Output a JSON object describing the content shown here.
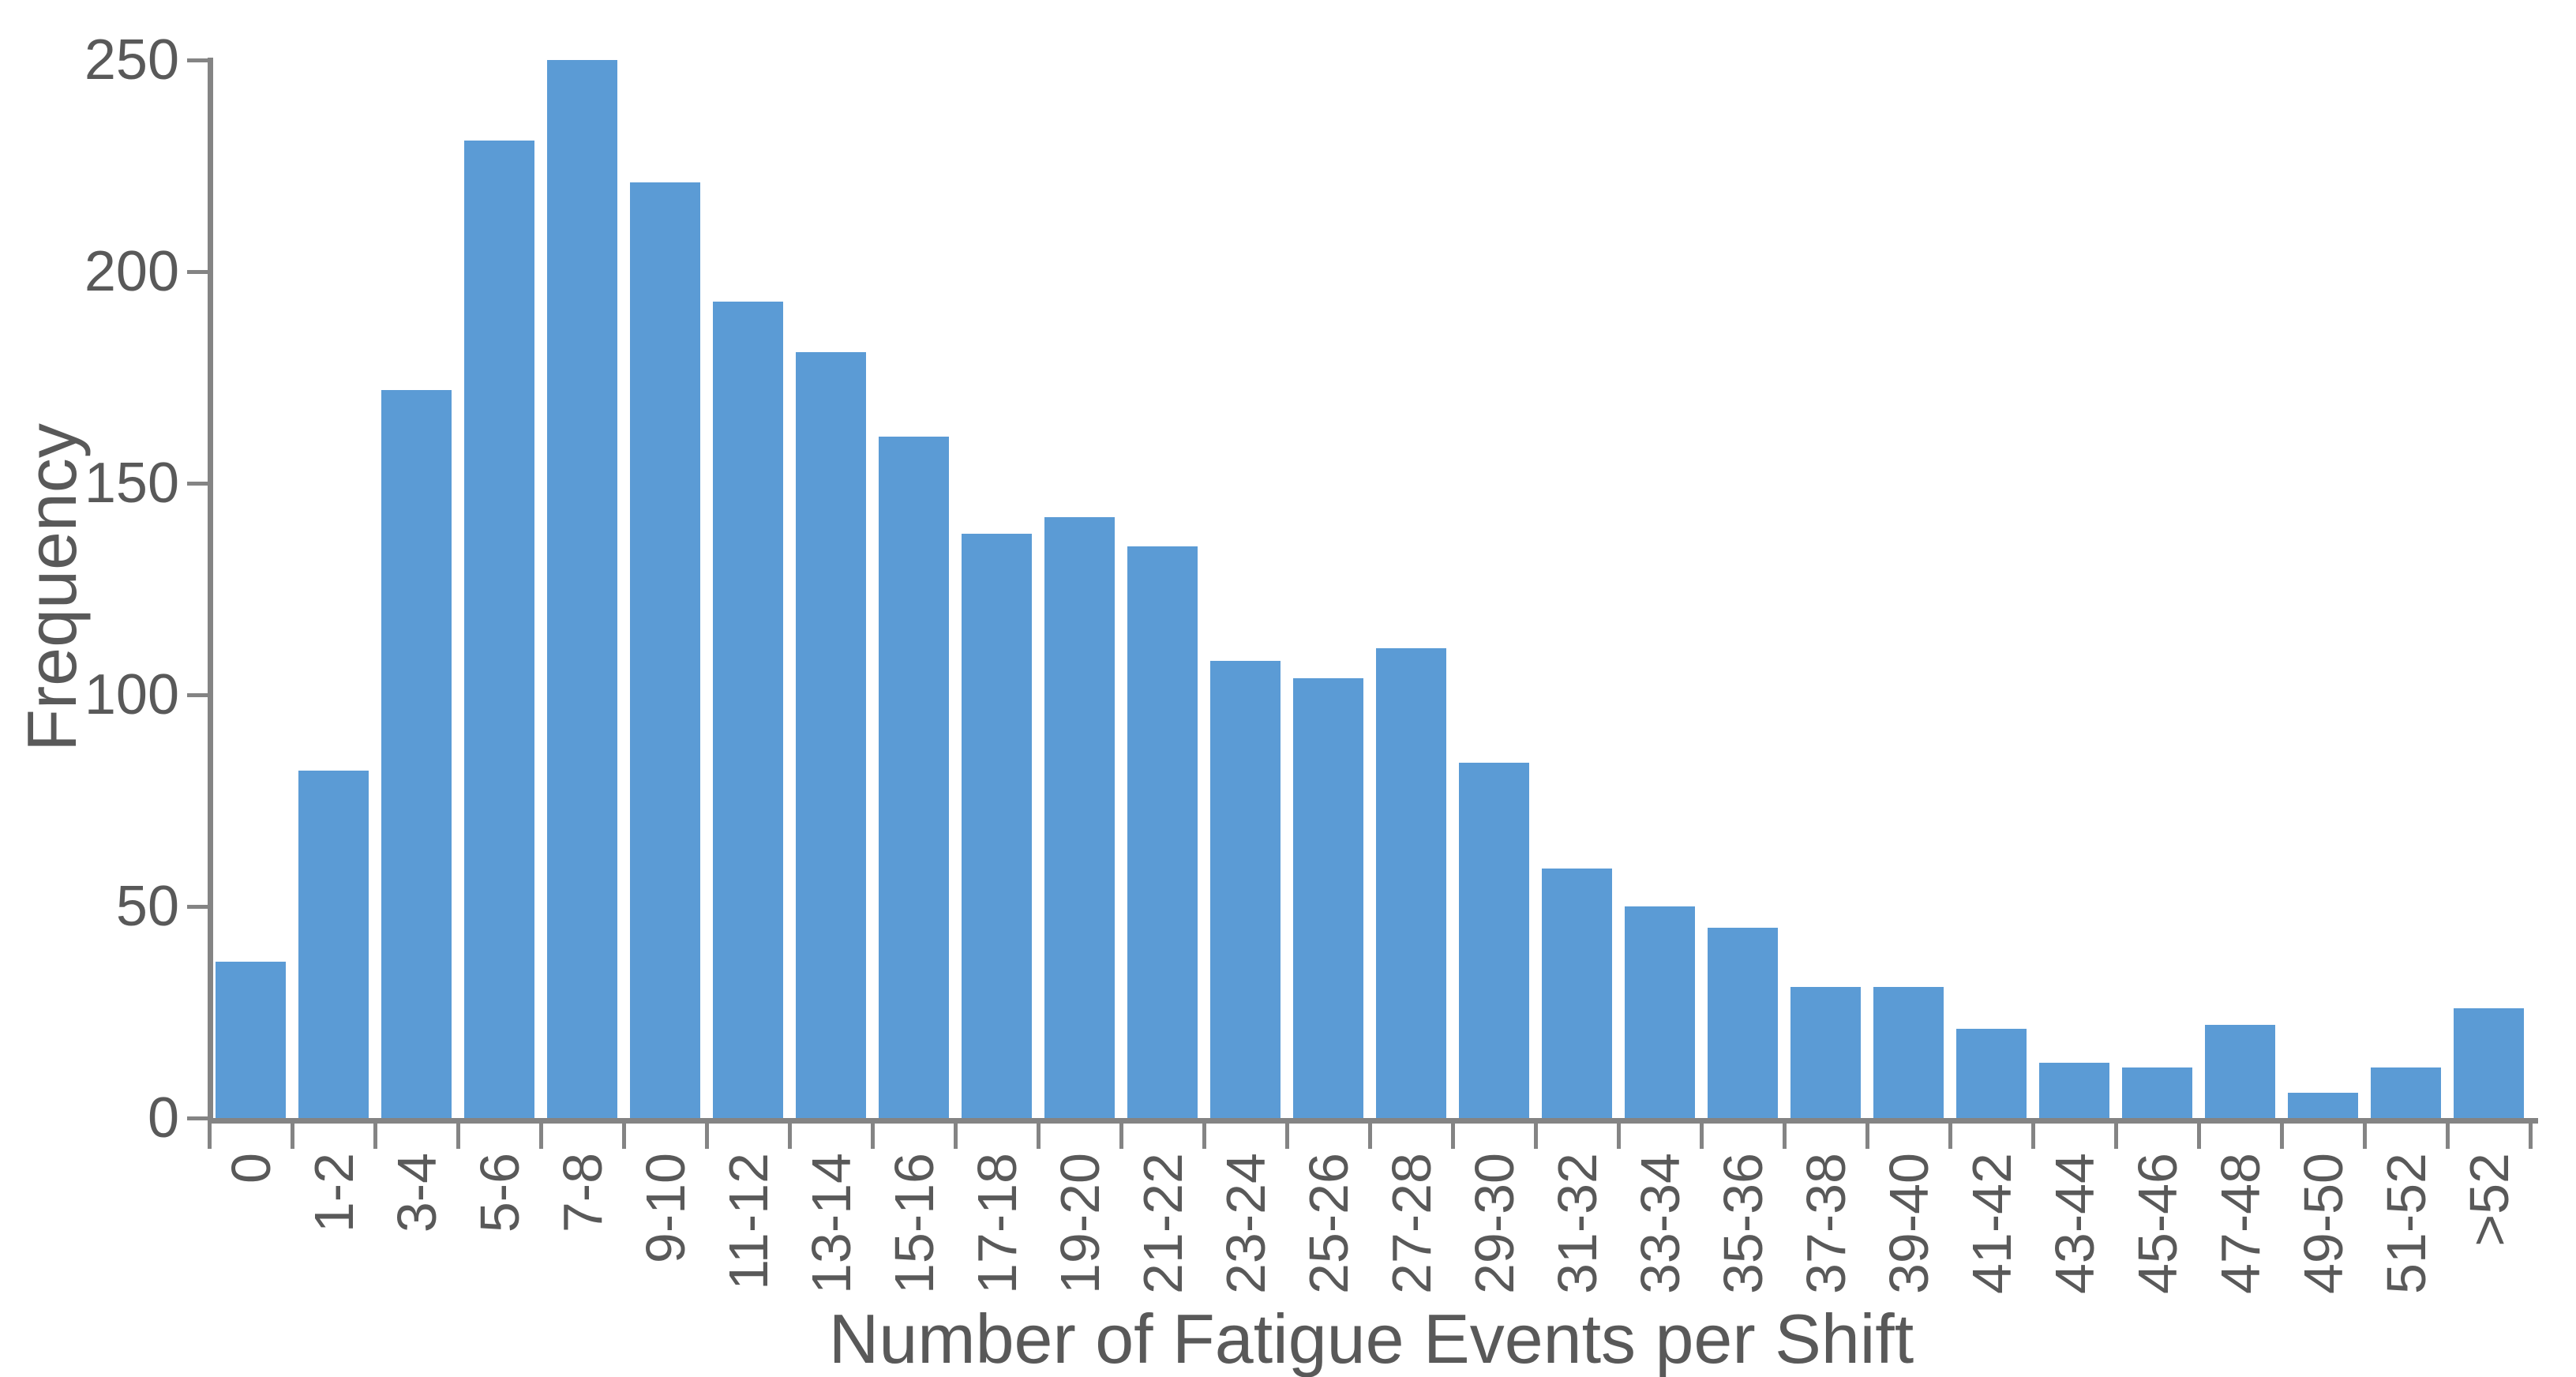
{
  "chart_data": {
    "type": "bar",
    "title": "",
    "xlabel": "Number of Fatigue Events per Shift",
    "ylabel": "Frequency",
    "categories": [
      "0",
      "1-2",
      "3-4",
      "5-6",
      "7-8",
      "9-10",
      "11-12",
      "13-14",
      "15-16",
      "17-18",
      "19-20",
      "21-22",
      "23-24",
      "25-26",
      "27-28",
      "29-30",
      "31-32",
      "33-34",
      "35-36",
      "37-38",
      "39-40",
      "41-42",
      "43-44",
      "45-46",
      "47-48",
      "49-50",
      "51-52",
      ">52"
    ],
    "values": [
      37,
      82,
      172,
      231,
      250,
      221,
      193,
      181,
      161,
      138,
      142,
      135,
      108,
      104,
      111,
      84,
      59,
      50,
      45,
      31,
      31,
      21,
      13,
      12,
      22,
      6,
      12,
      26
    ],
    "yticks": [
      0,
      50,
      100,
      150,
      200,
      250
    ],
    "ylim": [
      0,
      250
    ],
    "grid": false,
    "legend": "none",
    "colors": {
      "bar": "#5B9BD5",
      "axis": "#848484",
      "text": "#595959"
    }
  }
}
